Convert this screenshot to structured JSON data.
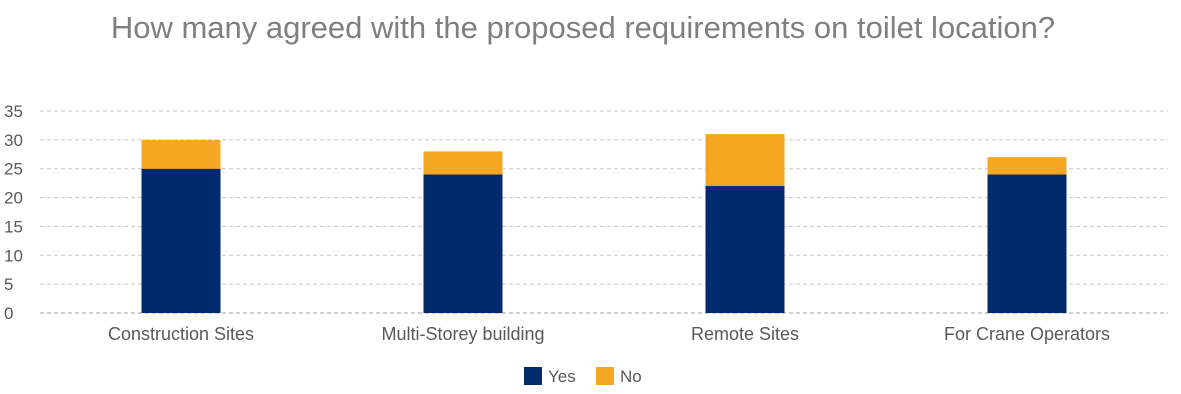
{
  "chart_data": {
    "type": "bar",
    "stacked": true,
    "title": "How many agreed with the proposed requirements on toilet location?",
    "xlabel": "",
    "ylabel": "",
    "categories": [
      "Construction Sites",
      "Multi-Storey building",
      "Remote Sites",
      "For Crane Operators"
    ],
    "series": [
      {
        "name": "Yes",
        "values": [
          25,
          24,
          22,
          24
        ],
        "color": "#002a6c"
      },
      {
        "name": "No",
        "values": [
          5,
          4,
          9,
          3
        ],
        "color": "#f5a623"
      }
    ],
    "ylim": [
      0,
      35
    ],
    "yticks": [
      0,
      5,
      10,
      15,
      20,
      25,
      30,
      35
    ],
    "grid": true,
    "grid_style": "dashed",
    "legend_position": "bottom-center"
  }
}
